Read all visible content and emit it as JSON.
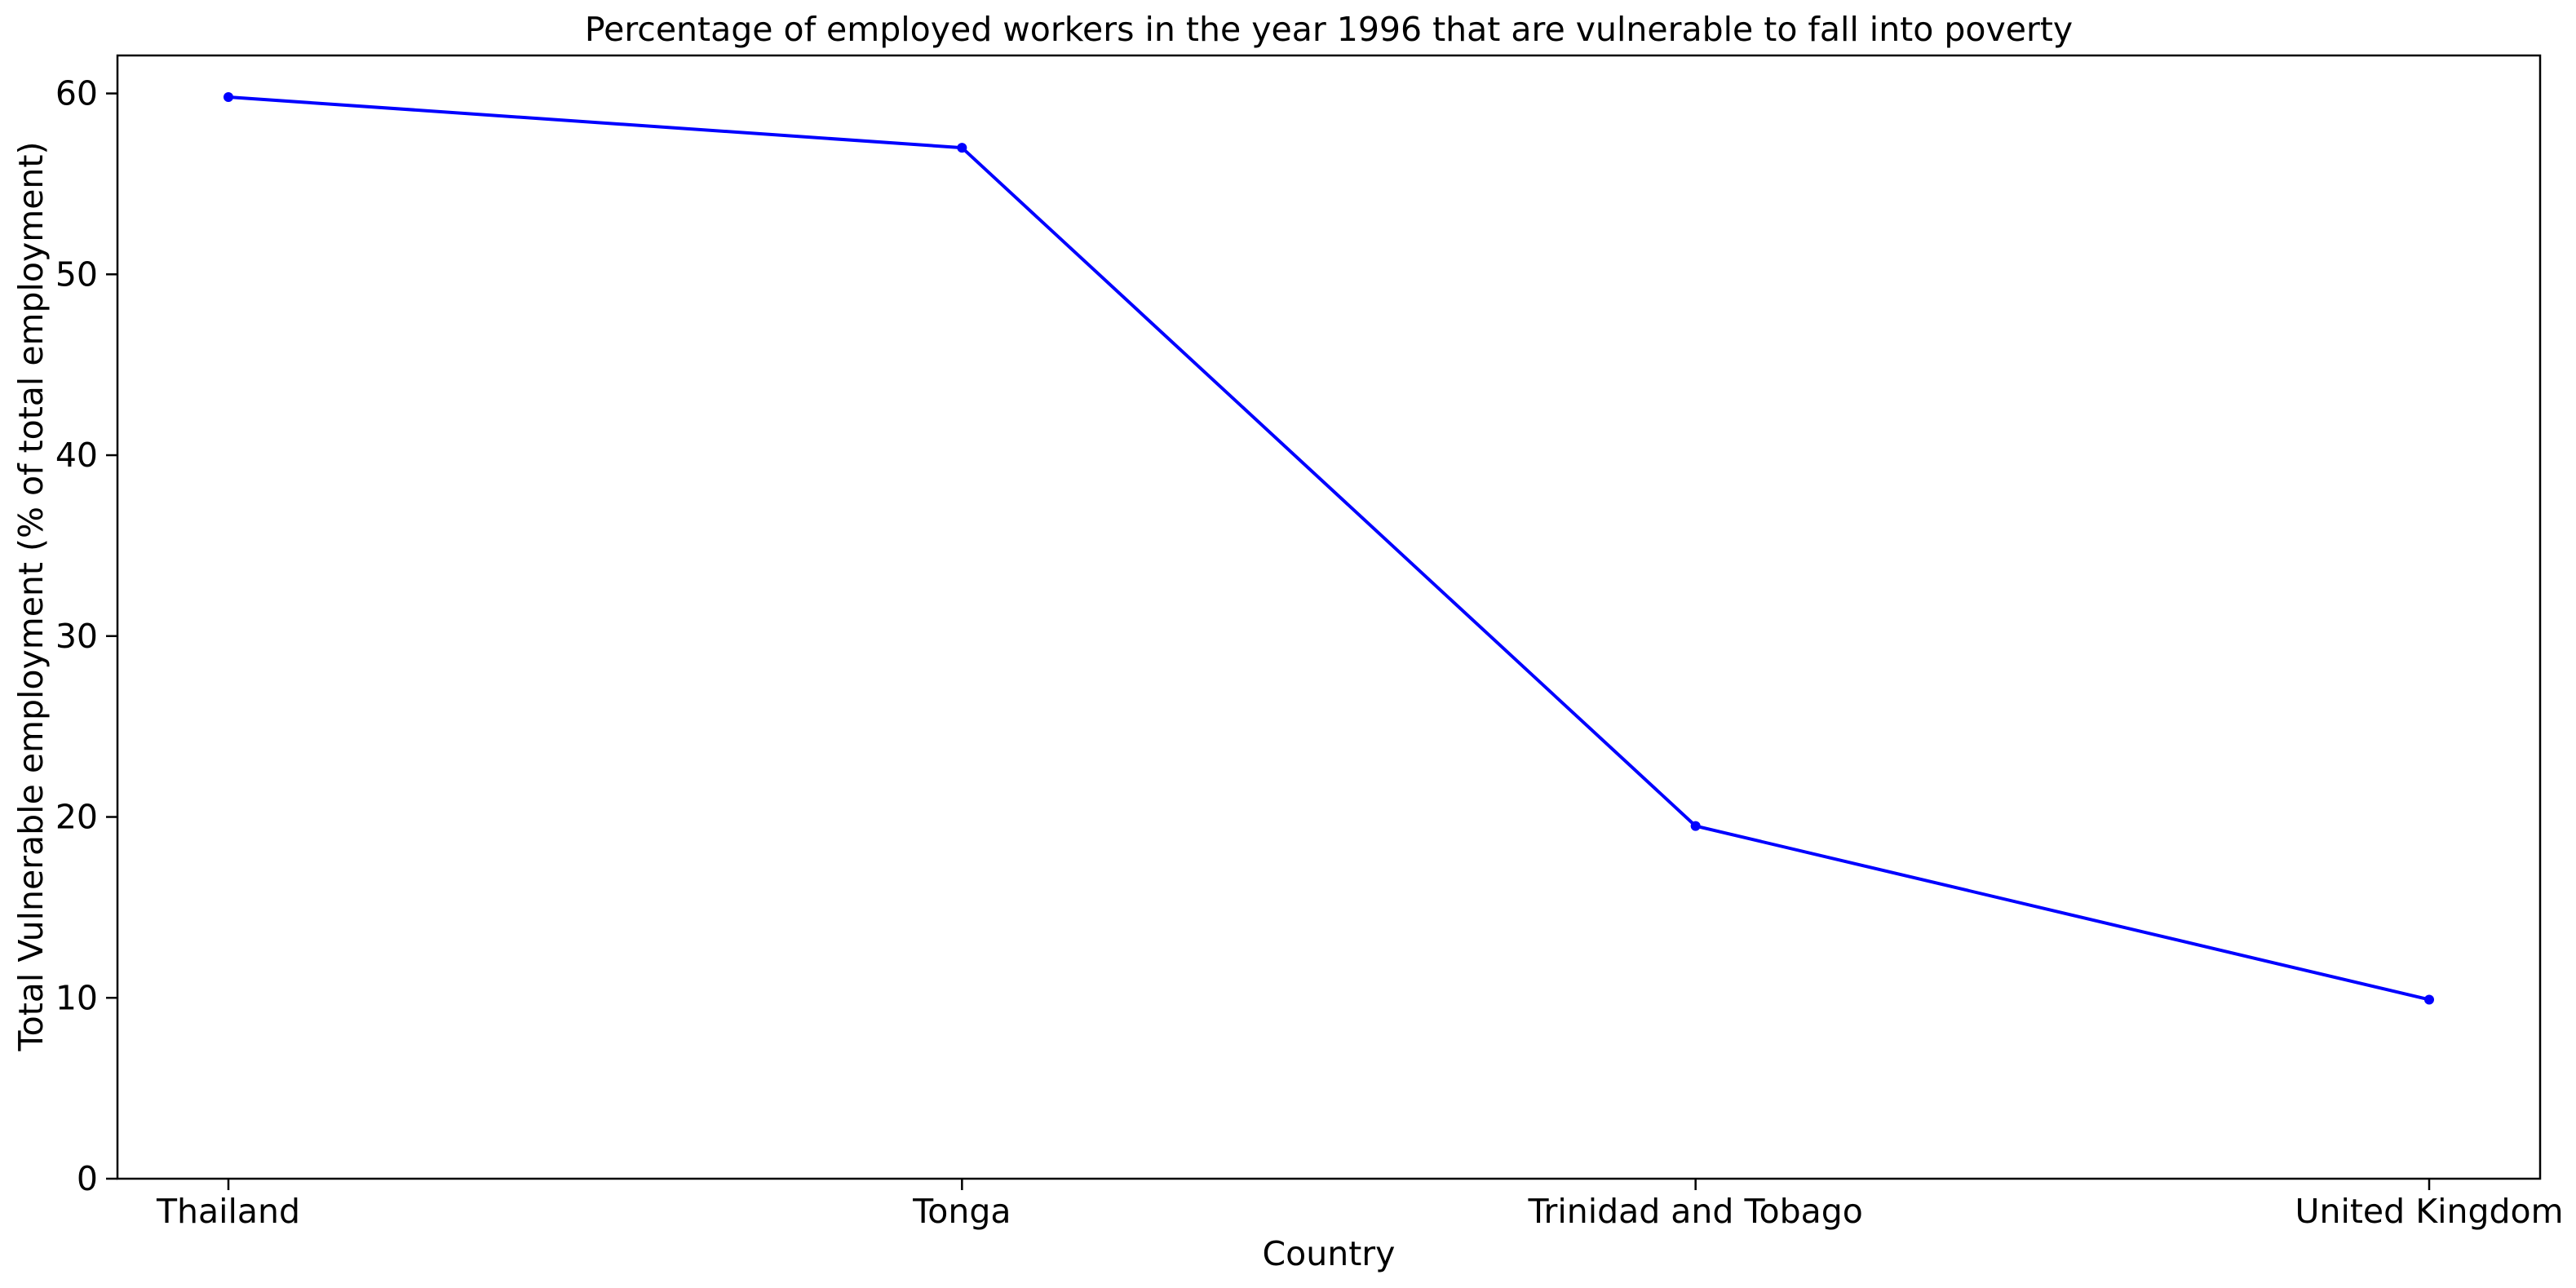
{
  "chart_data": {
    "type": "line",
    "title": "Percentage of employed workers in the year 1996 that are vulnerable to fall into poverty",
    "xlabel": "Country",
    "ylabel": "Total Vulnerable employment (% of total employment)",
    "categories": [
      "Thailand",
      "Tonga",
      "Trinidad and Tobago",
      "United Kingdom"
    ],
    "series": [
      {
        "values": [
          59.8,
          57.0,
          19.5,
          9.9
        ],
        "color": "#0000ff",
        "marker": "dot"
      }
    ],
    "ylim": [
      0,
      62.1
    ],
    "yticks": [
      0,
      10,
      20,
      30,
      40,
      50,
      60
    ],
    "grid": false,
    "legend": "none"
  }
}
